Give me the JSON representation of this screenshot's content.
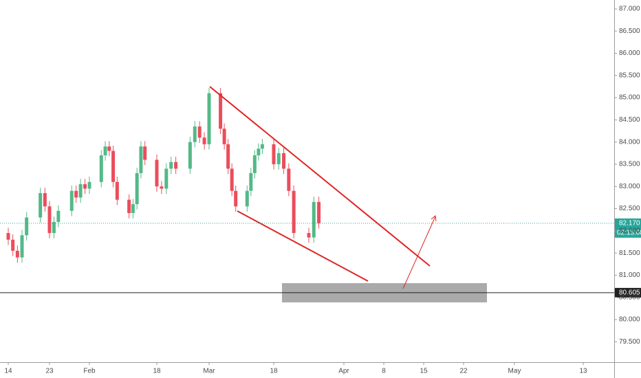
{
  "chart_data": {
    "type": "candlestick",
    "x": [
      0,
      1,
      2,
      3,
      4,
      7,
      8,
      9,
      10,
      11,
      14,
      15,
      16,
      17,
      18,
      21,
      22,
      23,
      24,
      25,
      28,
      29,
      30,
      31,
      32,
      35,
      36,
      37,
      38,
      39,
      42,
      43,
      44,
      45,
      46,
      49,
      50,
      51,
      52,
      53,
      56,
      57,
      58,
      59,
      60,
      63,
      64,
      65,
      66,
      67,
      70,
      71,
      72
    ],
    "open": [
      81.95,
      81.8,
      81.55,
      81.4,
      81.9,
      82.3,
      82.85,
      82.55,
      81.95,
      82.2,
      82.45,
      82.9,
      82.75,
      83.05,
      82.95,
      83.1,
      83.7,
      83.9,
      83.8,
      83.1,
      82.7,
      82.4,
      82.6,
      83.3,
      83.9,
      83.6,
      83.0,
      82.95,
      83.4,
      83.55,
      83.4,
      84.0,
      84.35,
      84.1,
      83.95,
      85.1,
      84.3,
      83.95,
      83.4,
      82.9,
      82.55,
      82.9,
      83.3,
      83.7,
      83.85,
      83.95,
      83.5,
      83.75,
      83.4,
      82.9,
      81.95,
      81.85,
      82.65
    ],
    "high": [
      82.07,
      81.92,
      81.67,
      82.02,
      82.42,
      82.97,
      82.97,
      82.67,
      82.32,
      82.57,
      83.02,
      83.02,
      83.17,
      83.17,
      83.22,
      83.82,
      84.02,
      84.02,
      83.92,
      83.22,
      82.82,
      82.72,
      83.42,
      84.02,
      84.02,
      83.72,
      83.12,
      83.52,
      83.67,
      83.67,
      84.12,
      84.47,
      84.47,
      84.22,
      85.22,
      85.22,
      84.42,
      84.07,
      83.52,
      83.02,
      83.02,
      83.42,
      83.82,
      83.97,
      84.07,
      84.07,
      83.87,
      83.87,
      83.52,
      83.02,
      82.07,
      82.77,
      82.77
    ],
    "low": [
      81.68,
      81.43,
      81.28,
      81.28,
      81.78,
      82.18,
      82.43,
      81.83,
      81.83,
      82.08,
      82.33,
      82.63,
      82.63,
      82.83,
      82.83,
      82.98,
      83.58,
      83.68,
      82.98,
      82.58,
      82.28,
      82.28,
      82.48,
      83.18,
      83.48,
      82.88,
      82.83,
      82.83,
      83.28,
      83.28,
      83.28,
      83.88,
      83.98,
      83.83,
      83.83,
      84.18,
      83.83,
      83.28,
      82.78,
      82.43,
      82.43,
      82.78,
      83.18,
      83.58,
      83.73,
      83.38,
      83.38,
      83.28,
      82.78,
      81.83,
      81.73,
      81.73,
      82.05
    ],
    "close": [
      81.8,
      81.55,
      81.4,
      81.9,
      82.3,
      82.85,
      82.55,
      81.95,
      82.2,
      82.45,
      82.9,
      82.75,
      83.05,
      82.95,
      83.1,
      83.7,
      83.9,
      83.8,
      83.1,
      82.7,
      82.4,
      82.6,
      83.3,
      83.9,
      83.6,
      83.0,
      82.95,
      83.4,
      83.55,
      83.4,
      84.0,
      84.35,
      84.1,
      83.95,
      85.1,
      84.3,
      83.95,
      83.4,
      82.9,
      82.55,
      82.9,
      83.3,
      83.7,
      83.85,
      83.95,
      83.5,
      83.75,
      83.4,
      82.9,
      81.95,
      81.85,
      82.65,
      82.17
    ],
    "up_color": "#53b987",
    "down_color": "#eb4d5c",
    "xlim": [
      -2,
      124
    ],
    "xticks": [
      {
        "value": 0,
        "label": "14"
      },
      {
        "value": 9,
        "label": "23"
      },
      {
        "value": 18,
        "label": "Feb"
      },
      {
        "value": 35,
        "label": "18"
      },
      {
        "value": 46,
        "label": "Mar"
      },
      {
        "value": 63,
        "label": "18"
      },
      {
        "value": 77,
        "label": "Apr"
      },
      {
        "value": 84,
        "label": "8"
      },
      {
        "value": 91,
        "label": "15"
      },
      {
        "value": 98,
        "label": "22"
      },
      {
        "value": 107,
        "label": "May"
      },
      {
        "value": 119,
        "label": "13"
      }
    ],
    "ylim": [
      79.04,
      87.2
    ],
    "yticks": [
      {
        "value": 79.5,
        "label": "79.500"
      },
      {
        "value": 80,
        "label": "80.000"
      },
      {
        "value": 80.5,
        "label": "80.500"
      },
      {
        "value": 81,
        "label": "81.000"
      },
      {
        "value": 81.5,
        "label": "81.500"
      },
      {
        "value": 82,
        "label": "82.000"
      },
      {
        "value": 82.5,
        "label": "82.500"
      },
      {
        "value": 83,
        "label": "83.000"
      },
      {
        "value": 83.5,
        "label": "83.500"
      },
      {
        "value": 84,
        "label": "84.000"
      },
      {
        "value": 84.5,
        "label": "84.500"
      },
      {
        "value": 85,
        "label": "85.000"
      },
      {
        "value": 85.5,
        "label": "85.500"
      },
      {
        "value": 86,
        "label": "86.000"
      },
      {
        "value": 86.5,
        "label": "86.500"
      },
      {
        "value": 87,
        "label": "87.000"
      }
    ],
    "last_price": {
      "value": 82.17,
      "label": "82.170"
    },
    "countdown": "02:15:08",
    "level": {
      "value": 80.605,
      "label": "80.605"
    },
    "last_color": "#26a69a"
  }
}
